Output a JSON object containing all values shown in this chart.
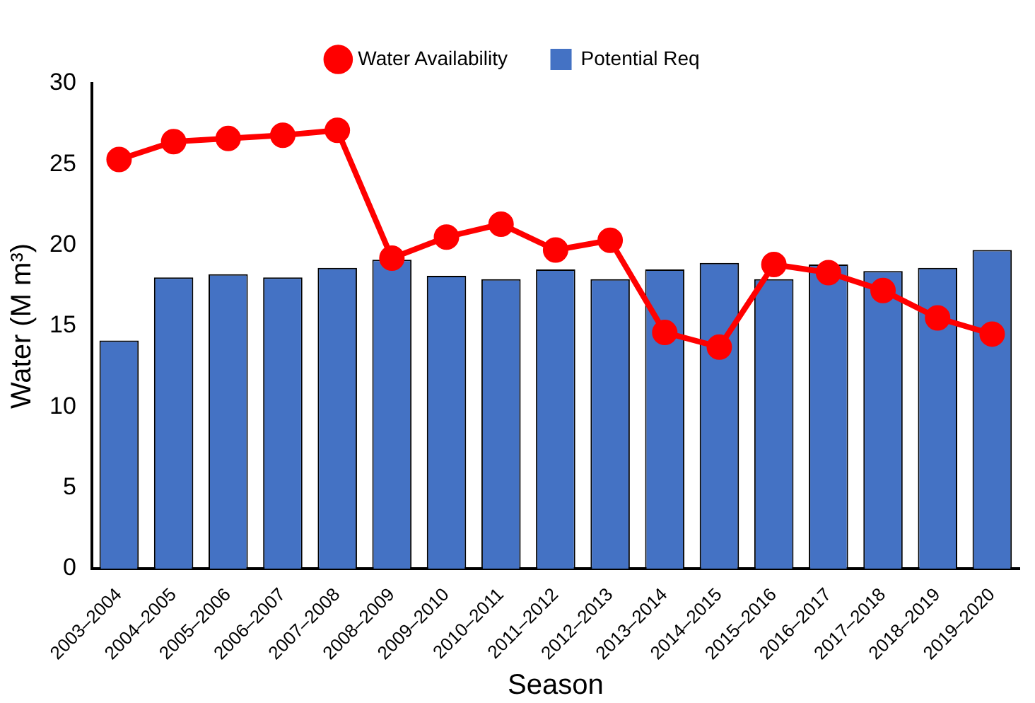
{
  "chart_data": {
    "type": "bar",
    "xlabel": "Season",
    "ylabel": "Water (M m³)",
    "categories": [
      "2003–2004",
      "2004–2005",
      "2005–2006",
      "2006–2007",
      "2007–2008",
      "2008–2009",
      "2009–2010",
      "2010–2011",
      "2011–2012",
      "2012–2013",
      "2013–2014",
      "2014–2015",
      "2015–2016",
      "2016–2017",
      "2017–2018",
      "2018–2019",
      "2019–2020"
    ],
    "series": [
      {
        "name": "Water Availability",
        "type": "line",
        "color": "#ff0000",
        "marker": "circle",
        "values": [
          25.3,
          26.4,
          26.6,
          26.8,
          27.1,
          19.2,
          20.5,
          21.3,
          19.7,
          20.3,
          14.6,
          13.7,
          18.8,
          18.3,
          17.2,
          15.5,
          14.5
        ]
      },
      {
        "name": "Potential Req",
        "color": "#4472c4",
        "values": [
          14.1,
          18.0,
          18.2,
          18.0,
          18.6,
          19.1,
          18.1,
          17.9,
          18.5,
          17.9,
          18.5,
          18.9,
          17.9,
          18.8,
          18.4,
          18.6,
          19.7
        ]
      }
    ],
    "ylim": [
      0,
      30
    ],
    "yticks": [
      0,
      5,
      10,
      15,
      20,
      25,
      30
    ],
    "grid": false,
    "legend": "top"
  }
}
